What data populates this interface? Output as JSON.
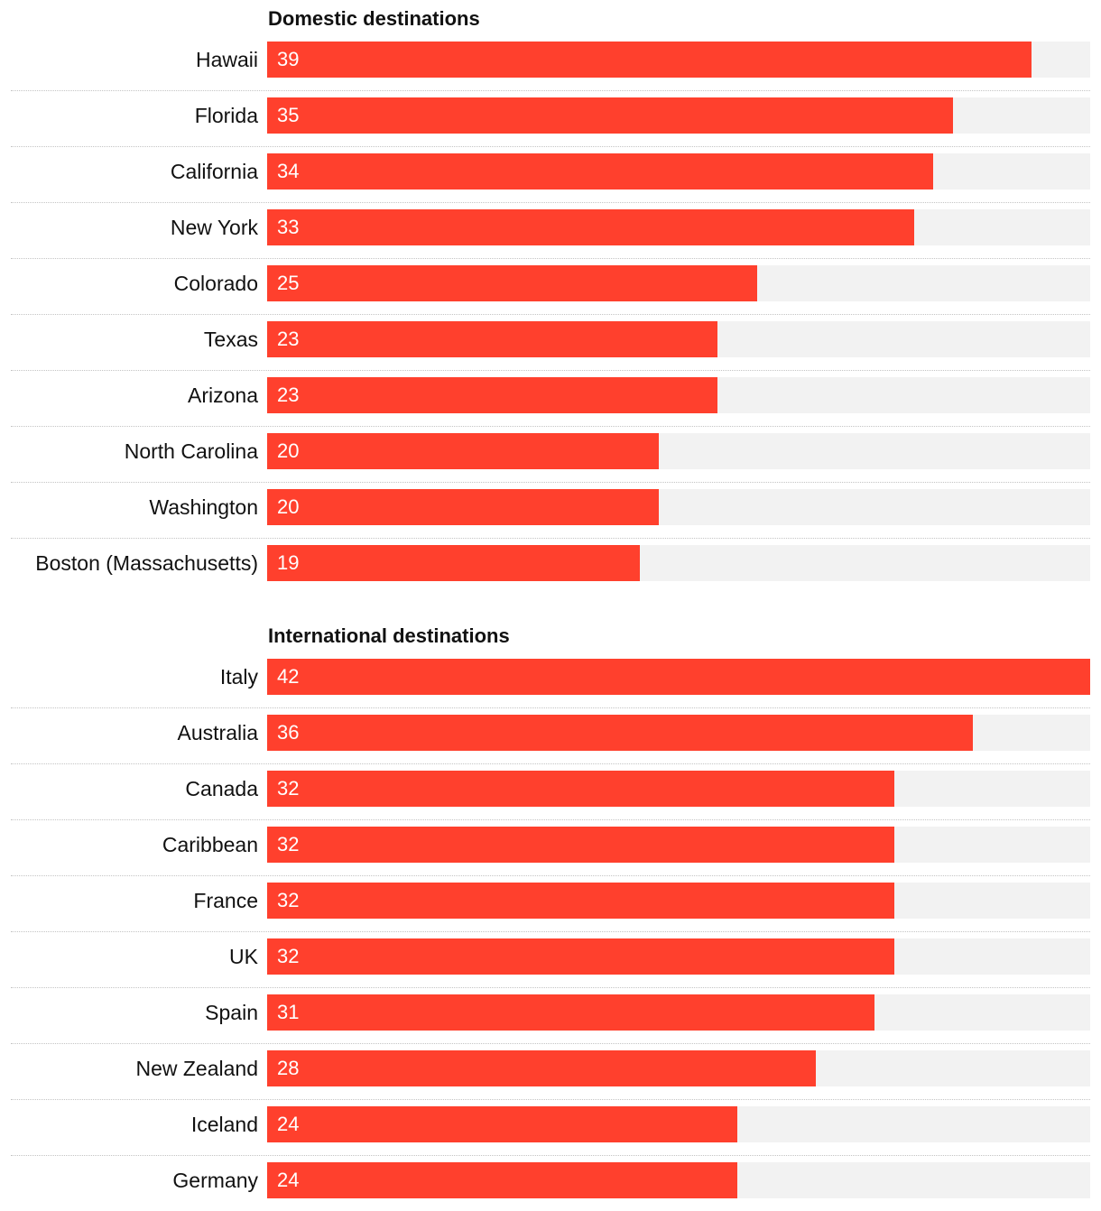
{
  "colors": {
    "bar": "#ff402d",
    "track": "#f2f2f2",
    "divider": "#c4c4c4"
  },
  "chart_data": [
    {
      "type": "bar",
      "orientation": "horizontal",
      "title": "Domestic destinations",
      "categories": [
        "Hawaii",
        "Florida",
        "California",
        "New York",
        "Colorado",
        "Texas",
        "Arizona",
        "North Carolina",
        "Washington",
        "Boston (Massachusetts)"
      ],
      "values": [
        39,
        35,
        34,
        33,
        25,
        23,
        23,
        20,
        20,
        19
      ],
      "xlim": [
        0,
        42
      ],
      "grid": false
    },
    {
      "type": "bar",
      "orientation": "horizontal",
      "title": "International destinations",
      "categories": [
        "Italy",
        "Australia",
        "Canada",
        "Caribbean",
        "France",
        "UK",
        "Spain",
        "New Zealand",
        "Iceland",
        "Germany"
      ],
      "values": [
        42,
        36,
        32,
        32,
        32,
        32,
        31,
        28,
        24,
        24
      ],
      "xlim": [
        0,
        42
      ],
      "grid": false
    }
  ]
}
